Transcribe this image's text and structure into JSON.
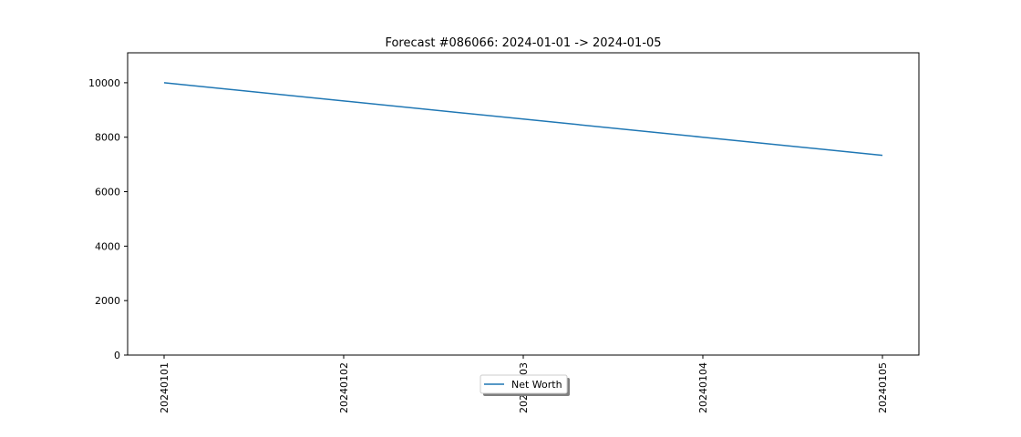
{
  "chart_data": {
    "type": "line",
    "title": "Forecast #086066: 2024-01-01 -> 2024-01-05",
    "x": [
      "20240101",
      "20240102",
      "20240103",
      "20240104",
      "20240105"
    ],
    "series": [
      {
        "name": "Net Worth",
        "values": [
          10000,
          9333,
          8667,
          8000,
          7333
        ]
      }
    ],
    "ylim": [
      0,
      11100
    ],
    "yticks": [
      0,
      2000,
      4000,
      6000,
      8000,
      10000
    ],
    "grid": false,
    "legend_position": "bottom-center",
    "colors": {
      "series": "#1f77b4",
      "axes": "#000000"
    }
  }
}
